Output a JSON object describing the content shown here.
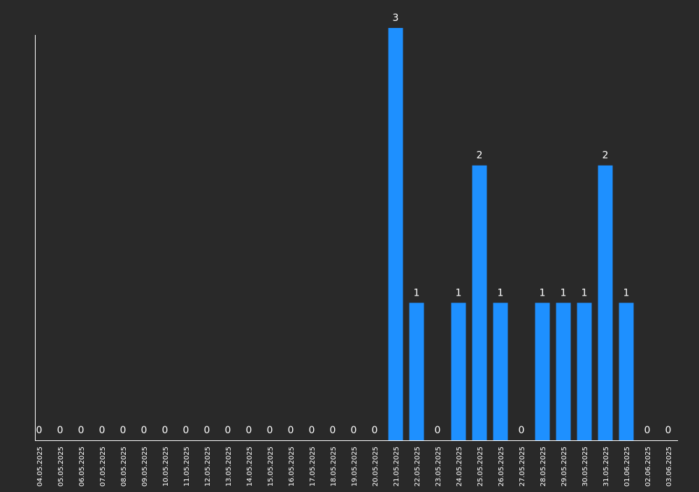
{
  "theme": {
    "background": "#292929",
    "bar_color": "#1e90ff",
    "axis_color": "#ffffff",
    "text_color": "#ffffff"
  },
  "chart_data": {
    "type": "bar",
    "title": "",
    "xlabel": "",
    "ylabel": "",
    "ylim": [
      0,
      3
    ],
    "grid": false,
    "legend": "none",
    "data_labels": true,
    "categories": [
      "04.05.2025",
      "05.05.2025",
      "06.05.2025",
      "07.05.2025",
      "08.05.2025",
      "09.05.2025",
      "10.05.2025",
      "11.05.2025",
      "12.05.2025",
      "13.05.2025",
      "14.05.2025",
      "15.05.2025",
      "16.05.2025",
      "17.05.2025",
      "18.05.2025",
      "19.05.2025",
      "20.05.2025",
      "21.05.2025",
      "22.05.2025",
      "23.05.2025",
      "24.05.2025",
      "25.05.2025",
      "26.05.2025",
      "27.05.2025",
      "28.05.2025",
      "29.05.2025",
      "30.05.2025",
      "31.05.2025",
      "01.06.2025",
      "02.06.2025",
      "03.06.2025"
    ],
    "values": [
      0,
      0,
      0,
      0,
      0,
      0,
      0,
      0,
      0,
      0,
      0,
      0,
      0,
      0,
      0,
      0,
      0,
      3,
      1,
      0,
      1,
      2,
      1,
      0,
      1,
      1,
      1,
      2,
      1,
      0,
      0
    ]
  }
}
